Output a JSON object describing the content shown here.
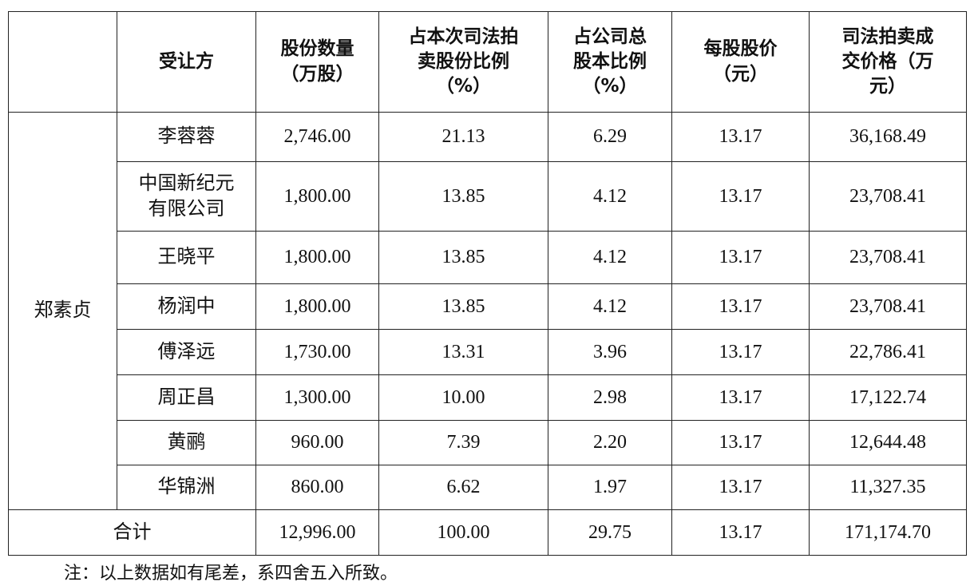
{
  "table": {
    "header": [
      [
        "受让方"
      ],
      [
        "股份数量",
        "（万股）"
      ],
      [
        "占本次司法拍",
        "卖股份比例",
        "（%）"
      ],
      [
        "占公司总",
        "股本比例",
        "（%）"
      ],
      [
        "每股股价",
        "（元）"
      ],
      [
        "司法拍卖成",
        "交价格（万",
        "元）"
      ]
    ],
    "transferor": "郑素贞",
    "rows": [
      {
        "name": [
          "李蓉蓉"
        ],
        "values": [
          "2,746.00",
          "21.13",
          "6.29",
          "13.17",
          "36,168.49"
        ]
      },
      {
        "name": [
          "中国新纪元",
          "有限公司"
        ],
        "values": [
          "1,800.00",
          "13.85",
          "4.12",
          "13.17",
          "23,708.41"
        ]
      },
      {
        "name": [
          "王晓平"
        ],
        "values": [
          "1,800.00",
          "13.85",
          "4.12",
          "13.17",
          "23,708.41"
        ]
      },
      {
        "name": [
          "杨润中"
        ],
        "values": [
          "1,800.00",
          "13.85",
          "4.12",
          "13.17",
          "23,708.41"
        ]
      },
      {
        "name": [
          "傅泽远"
        ],
        "values": [
          "1,730.00",
          "13.31",
          "3.96",
          "13.17",
          "22,786.41"
        ]
      },
      {
        "name": [
          "周正昌"
        ],
        "values": [
          "1,300.00",
          "10.00",
          "2.98",
          "13.17",
          "17,122.74"
        ]
      },
      {
        "name": [
          "黄鹂"
        ],
        "values": [
          "960.00",
          "7.39",
          "2.20",
          "13.17",
          "12,644.48"
        ]
      },
      {
        "name": [
          "华锦洲"
        ],
        "values": [
          "860.00",
          "6.62",
          "1.97",
          "13.17",
          "11,327.35"
        ]
      }
    ],
    "total": {
      "label": "合计",
      "values": [
        "12,996.00",
        "100.00",
        "29.75",
        "13.17",
        "171,174.70"
      ]
    }
  },
  "note": "注：以上数据如有尾差，系四舍五入所致。"
}
